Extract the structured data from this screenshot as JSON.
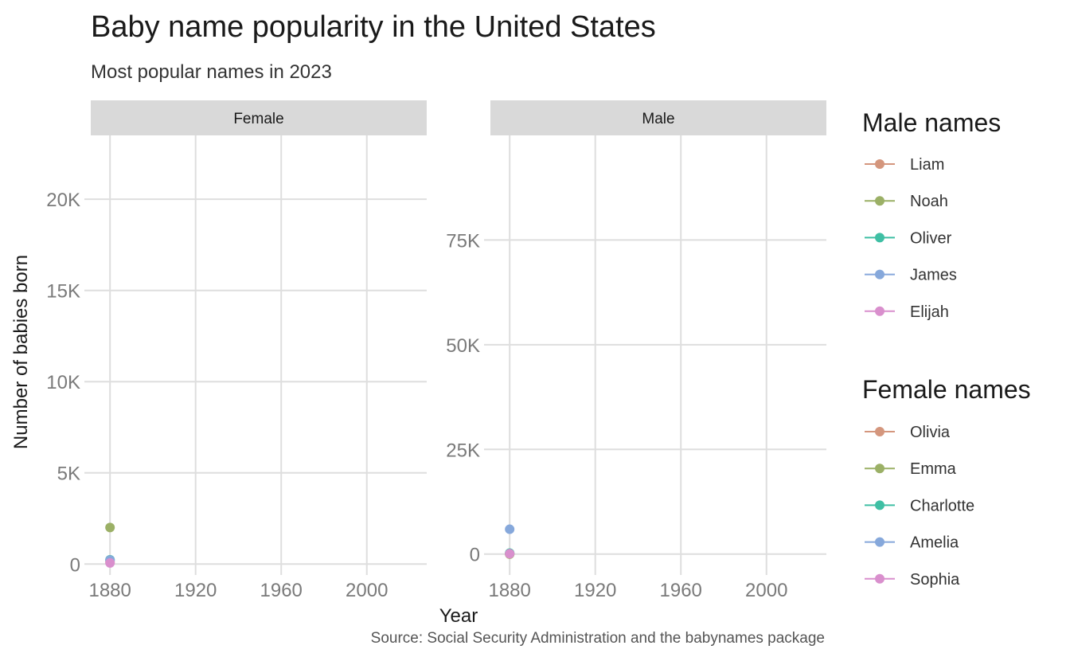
{
  "chart_data": {
    "type": "line",
    "title": "Baby name popularity in the United States",
    "subtitle": "Most popular names in 2023",
    "xlabel": "Year",
    "ylabel": "Number of babies born",
    "caption": "Source: Social Security Administration and the babynames package",
    "grid": true,
    "legend_position": "right",
    "legends": [
      {
        "title": "Male names",
        "entries": [
          {
            "name": "Liam",
            "color": "#d4967d"
          },
          {
            "name": "Noah",
            "color": "#9bb066"
          },
          {
            "name": "Oliver",
            "color": "#3fbfa4"
          },
          {
            "name": "James",
            "color": "#86a8db"
          },
          {
            "name": "Elijah",
            "color": "#d98fcd"
          }
        ]
      },
      {
        "title": "Female names",
        "entries": [
          {
            "name": "Olivia",
            "color": "#d4967d"
          },
          {
            "name": "Emma",
            "color": "#9bb066"
          },
          {
            "name": "Charlotte",
            "color": "#3fbfa4"
          },
          {
            "name": "Amelia",
            "color": "#86a8db"
          },
          {
            "name": "Sophia",
            "color": "#d98fcd"
          }
        ]
      }
    ],
    "panels": [
      {
        "strip": "Female",
        "xlim": [
          1871,
          2028
        ],
        "ylim": [
          -600,
          23500
        ],
        "x_ticks": [
          1880,
          1920,
          1960,
          2000
        ],
        "y_ticks": [
          0,
          5000,
          10000,
          15000,
          20000
        ],
        "y_tick_labels": [
          "0",
          "5K",
          "10K",
          "15K",
          "20K"
        ],
        "series": [
          {
            "name": "Olivia",
            "color": "#d4967d",
            "points": [
              {
                "x": 1880,
                "y": 117
              }
            ]
          },
          {
            "name": "Emma",
            "color": "#9bb066",
            "points": [
              {
                "x": 1880,
                "y": 2003
              }
            ]
          },
          {
            "name": "Charlotte",
            "color": "#3fbfa4",
            "points": [
              {
                "x": 1880,
                "y": 237
              }
            ]
          },
          {
            "name": "Amelia",
            "color": "#86a8db",
            "points": [
              {
                "x": 1880,
                "y": 221
              }
            ]
          },
          {
            "name": "Sophia",
            "color": "#d98fcd",
            "points": [
              {
                "x": 1880,
                "y": 58
              }
            ]
          }
        ]
      },
      {
        "strip": "Male",
        "xlim": [
          1871,
          2028
        ],
        "ylim": [
          -5000,
          100000
        ],
        "x_ticks": [
          1880,
          1920,
          1960,
          2000
        ],
        "y_ticks": [
          0,
          25000,
          50000,
          75000
        ],
        "y_tick_labels": [
          "0",
          "25K",
          "50K",
          "75K"
        ],
        "series": [
          {
            "name": "Liam",
            "color": "#d4967d",
            "points": [
              {
                "x": 1880,
                "y": 0
              }
            ]
          },
          {
            "name": "Noah",
            "color": "#9bb066",
            "points": [
              {
                "x": 1880,
                "y": 0
              }
            ]
          },
          {
            "name": "Oliver",
            "color": "#3fbfa4",
            "points": [
              {
                "x": 1880,
                "y": 234
              }
            ]
          },
          {
            "name": "James",
            "color": "#86a8db",
            "points": [
              {
                "x": 1880,
                "y": 5927
              }
            ]
          },
          {
            "name": "Elijah",
            "color": "#d98fcd",
            "points": [
              {
                "x": 1880,
                "y": 94
              }
            ]
          }
        ]
      }
    ]
  }
}
